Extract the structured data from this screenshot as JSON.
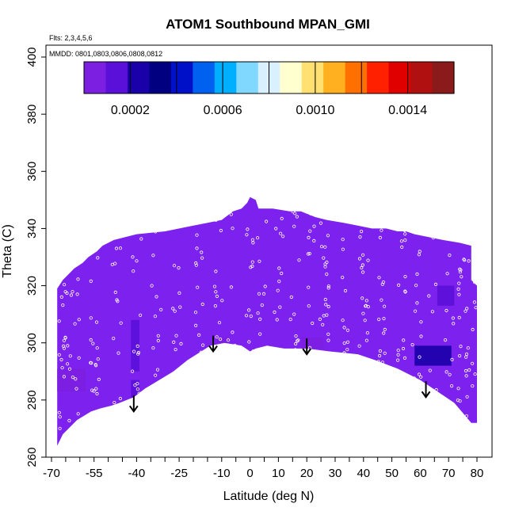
{
  "chart_data": {
    "type": "heatmap",
    "title": "ATOM1 Southbound MPAN_GMI",
    "flights_note": "Flts: 2,3,4,5,6",
    "dates_note": "MMDD: 0801,0803,0806,0808,0812",
    "xlabel": "Latitude (deg N)",
    "ylabel": "Theta (C)",
    "xlim": [
      -70,
      80
    ],
    "ylim": [
      260,
      400
    ],
    "x_ticks": [
      -70,
      -55,
      -40,
      -25,
      -10,
      0,
      10,
      20,
      30,
      40,
      50,
      60,
      70,
      80
    ],
    "x_tick_labels": [
      "-70",
      "-55",
      "-40",
      "-25",
      "-10",
      "0",
      "10",
      "20",
      "30",
      "40",
      "50",
      "60",
      "70",
      "80"
    ],
    "y_ticks": [
      260,
      280,
      300,
      320,
      340,
      360,
      380,
      400
    ],
    "y_tick_labels": [
      "260",
      "280",
      "300",
      "320",
      "340",
      "360",
      "380",
      "400"
    ],
    "colorbar": {
      "range": [
        0,
        0.0016
      ],
      "ticks": [
        0.0002,
        0.0006,
        0.001,
        0.0014
      ],
      "tick_labels": [
        "0.0002",
        "0.0006",
        "0.0010",
        "0.0014"
      ],
      "colors": [
        "#7d1fe0",
        "#5a10d8",
        "#1a00a8",
        "#000080",
        "#0010c8",
        "#0060f0",
        "#00b0ff",
        "#80d8ff",
        "#d8f0ff",
        "#ffffd0",
        "#ffe070",
        "#ffb020",
        "#ff7000",
        "#ff2000",
        "#e00000",
        "#b01010",
        "#8b1a1a"
      ]
    },
    "background_value_color": "#7d22ee",
    "top_boundary": [
      [
        -68,
        319
      ],
      [
        -66,
        322
      ],
      [
        -64,
        324
      ],
      [
        -62,
        326
      ],
      [
        -59,
        328
      ],
      [
        -57,
        330
      ],
      [
        -54,
        332
      ],
      [
        -52,
        334
      ],
      [
        -48,
        336
      ],
      [
        -44,
        337
      ],
      [
        -40,
        338
      ],
      [
        -30,
        339
      ],
      [
        -25,
        340
      ],
      [
        -20,
        341
      ],
      [
        -15,
        342
      ],
      [
        -10,
        343
      ],
      [
        -6,
        346
      ],
      [
        -3,
        347
      ],
      [
        -1,
        349
      ],
      [
        0,
        351
      ],
      [
        2,
        350
      ],
      [
        3,
        347
      ],
      [
        8,
        347
      ],
      [
        14,
        346
      ],
      [
        18,
        346
      ],
      [
        23,
        344
      ],
      [
        27,
        343
      ],
      [
        33,
        342
      ],
      [
        38,
        341
      ],
      [
        43,
        340
      ],
      [
        48,
        340
      ],
      [
        52,
        339
      ],
      [
        55,
        339
      ],
      [
        58,
        338
      ],
      [
        63,
        337
      ],
      [
        68,
        336
      ],
      [
        74,
        335
      ],
      [
        78,
        334
      ],
      [
        78,
        322
      ],
      [
        80,
        320
      ],
      [
        80,
        272
      ]
    ],
    "bottom_boundary": [
      [
        78,
        272
      ],
      [
        72,
        279
      ],
      [
        66,
        283
      ],
      [
        60,
        287
      ],
      [
        52,
        291
      ],
      [
        44,
        294
      ],
      [
        38,
        296
      ],
      [
        28,
        297
      ],
      [
        20,
        298
      ],
      [
        12,
        298
      ],
      [
        6,
        299
      ],
      [
        2,
        298
      ],
      [
        0,
        297
      ],
      [
        -3,
        299
      ],
      [
        -9,
        300
      ],
      [
        -14,
        299
      ],
      [
        -22,
        294
      ],
      [
        -27,
        290
      ],
      [
        -32,
        287
      ],
      [
        -37,
        284
      ],
      [
        -41,
        281
      ],
      [
        -46,
        279
      ],
      [
        -49,
        278
      ],
      [
        -53,
        277
      ],
      [
        -56,
        276
      ],
      [
        -61,
        273
      ],
      [
        -66,
        268
      ],
      [
        -68,
        264
      ]
    ],
    "high_value_patches": [
      {
        "lat": [
          -42,
          -39
        ],
        "theta": [
          300,
          308
        ],
        "value": 0.00018
      },
      {
        "lat": [
          -42,
          -39
        ],
        "theta": [
          290,
          300
        ],
        "value": 0.00014
      },
      {
        "lat": [
          -42,
          -39
        ],
        "theta": [
          279,
          287
        ],
        "value": 0.0001
      },
      {
        "lat": [
          58,
          71
        ],
        "theta": [
          292,
          299
        ],
        "value": 0.00022
      },
      {
        "lat": [
          66,
          72
        ],
        "theta": [
          313,
          320
        ],
        "value": 0.00016
      },
      {
        "lat": [
          18,
          26
        ],
        "theta": [
          298,
          302
        ],
        "value": 8e-05
      },
      {
        "lat": [
          -12,
          -8
        ],
        "theta": [
          299,
          302
        ],
        "value": 6e-05
      },
      {
        "lat": [
          -69,
          -58
        ],
        "theta": [
          283,
          291
        ],
        "value": 5e-05
      }
    ],
    "arrows": [
      {
        "lat": -41,
        "theta": 276
      },
      {
        "lat": -13,
        "theta": 297
      },
      {
        "lat": 20,
        "theta": 296
      },
      {
        "lat": 62,
        "theta": 281
      }
    ]
  }
}
